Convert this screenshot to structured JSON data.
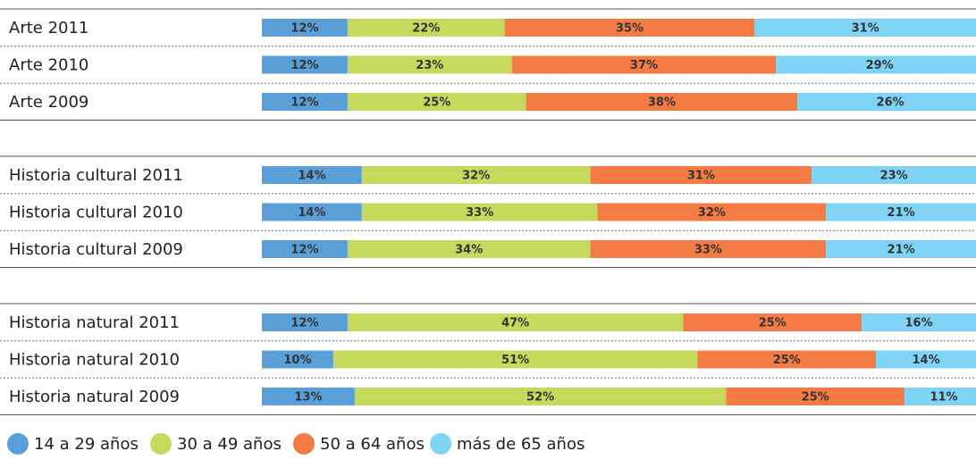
{
  "chart_data": {
    "type": "stacked-bar",
    "categories": [
      "Arte 2011",
      "Arte 2010",
      "Arte 2009",
      "Historia cultural 2011",
      "Historia cultural 2010",
      "Historia cultural 2009",
      "Historia natural 2011",
      "Historia natural 2010",
      "Historia natural 2009"
    ],
    "xlim": [
      0,
      100
    ],
    "legend": "bottom",
    "series": [
      {
        "name": "14 a 29 años",
        "color": "#5b9fd9",
        "values": [
          12,
          12,
          12,
          14,
          14,
          12,
          12,
          10,
          13
        ],
        "value_labels": [
          "12%",
          "12%",
          "12%",
          "14%",
          "14%",
          "12%",
          "12%",
          "10%",
          "13%"
        ]
      },
      {
        "name": "30 a 49 años",
        "color": "#c6d95c",
        "values": [
          22,
          23,
          25,
          32,
          33,
          34,
          47,
          51,
          52
        ],
        "value_labels": [
          "22%",
          "23%",
          "25%",
          "32%",
          "33%",
          "34%",
          "47%",
          "51%",
          "52%"
        ]
      },
      {
        "name": "50 a 64 años",
        "color": "#f47c44",
        "values": [
          35,
          37,
          38,
          31,
          32,
          33,
          25,
          25,
          25
        ],
        "value_labels": [
          "35%",
          "37%",
          "38%",
          "31%",
          "32%",
          "33%",
          "25%",
          "25%",
          "25%"
        ]
      },
      {
        "name": "más de 65 años",
        "color": "#7fd4f6",
        "values": [
          31,
          29,
          26,
          23,
          21,
          21,
          16,
          14,
          11
        ],
        "value_labels": [
          "31%",
          "29%",
          "26%",
          "23%",
          "21%",
          "21%",
          "16%",
          "14%",
          "11%"
        ]
      }
    ]
  }
}
